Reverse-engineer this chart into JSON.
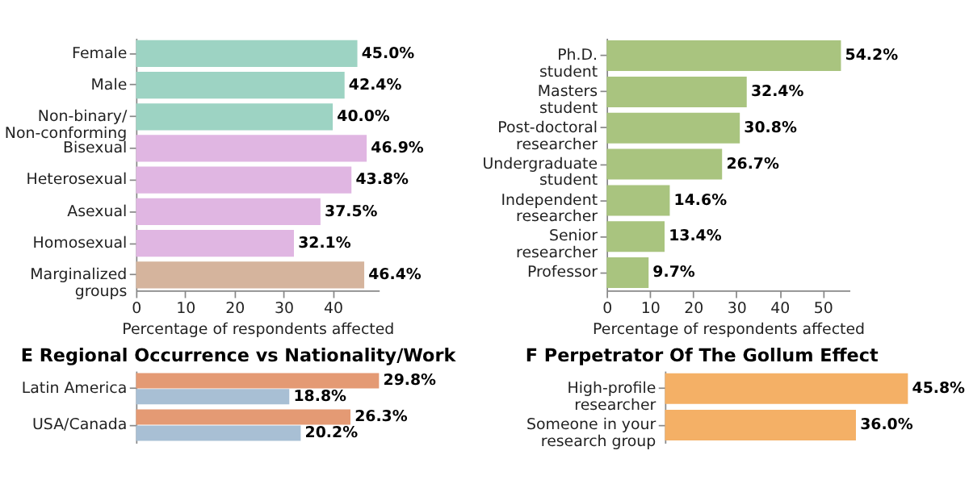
{
  "chart_data": [
    {
      "type": "bar",
      "orientation": "horizontal",
      "xlabel": "Percentage of respondents affected",
      "categories": [
        "Female",
        "Male",
        "Non-binary/\nNon-conforming",
        "Bisexual",
        "Heterosexual",
        "Asexual",
        "Homosexual",
        "Marginalized\ngroups"
      ],
      "values": [
        45.0,
        42.4,
        40.0,
        46.9,
        43.8,
        37.5,
        32.1,
        46.4
      ],
      "colors": [
        "#9dd3c3",
        "#9dd3c3",
        "#9dd3c3",
        "#e0b6e2",
        "#e0b6e2",
        "#e0b6e2",
        "#e0b6e2",
        "#d5b49d"
      ],
      "value_labels": [
        "45.0%",
        "42.4%",
        "40.0%",
        "46.9%",
        "43.8%",
        "37.5%",
        "32.1%",
        "46.4%"
      ],
      "xlim": [
        0,
        49.4
      ],
      "xticks": [
        0,
        10,
        20,
        30,
        40
      ],
      "grid": false
    },
    {
      "type": "bar",
      "orientation": "horizontal",
      "xlabel": "Percentage of respondents affected",
      "categories": [
        "Ph.D.\nstudent",
        "Masters\nstudent",
        "Post-doctoral\nresearcher",
        "Undergraduate\nstudent",
        "Independent\nresearcher",
        "Senior\nresearcher",
        "Professor"
      ],
      "values": [
        54.2,
        32.4,
        30.8,
        26.7,
        14.6,
        13.4,
        9.7
      ],
      "colors": [
        "#a9c47f",
        "#a9c47f",
        "#a9c47f",
        "#a9c47f",
        "#a9c47f",
        "#a9c47f",
        "#a9c47f"
      ],
      "value_labels": [
        "54.2%",
        "32.4%",
        "30.8%",
        "26.7%",
        "14.6%",
        "13.4%",
        "9.7%"
      ],
      "xlim": [
        0,
        56.2
      ],
      "xticks": [
        0,
        10,
        20,
        30,
        40,
        50
      ],
      "grid": false
    },
    {
      "type": "bar",
      "orientation": "horizontal",
      "title": "E   Regional Occurrence vs Nationality/Work",
      "categories": [
        "Latin America",
        "USA/Canada"
      ],
      "series": [
        {
          "color": "#e49a74",
          "values": [
            29.8,
            26.3
          ],
          "value_labels": [
            "29.8%",
            "26.3%"
          ]
        },
        {
          "color": "#a8bfd4",
          "values": [
            18.8,
            20.2
          ],
          "value_labels": [
            "18.8%",
            "20.2%"
          ]
        }
      ],
      "tick_labels": "y",
      "grid": false
    },
    {
      "type": "bar",
      "orientation": "horizontal",
      "title": "F   Perpetrator Of The Gollum Effect",
      "categories": [
        "High-profile\nresearcher",
        "Someone in your\nresearch group"
      ],
      "values": [
        45.8,
        36.0
      ],
      "colors": [
        "#f4b066",
        "#f4b066"
      ],
      "value_labels": [
        "45.8%",
        "36.0%"
      ],
      "tick_labels": "y",
      "grid": false
    }
  ]
}
